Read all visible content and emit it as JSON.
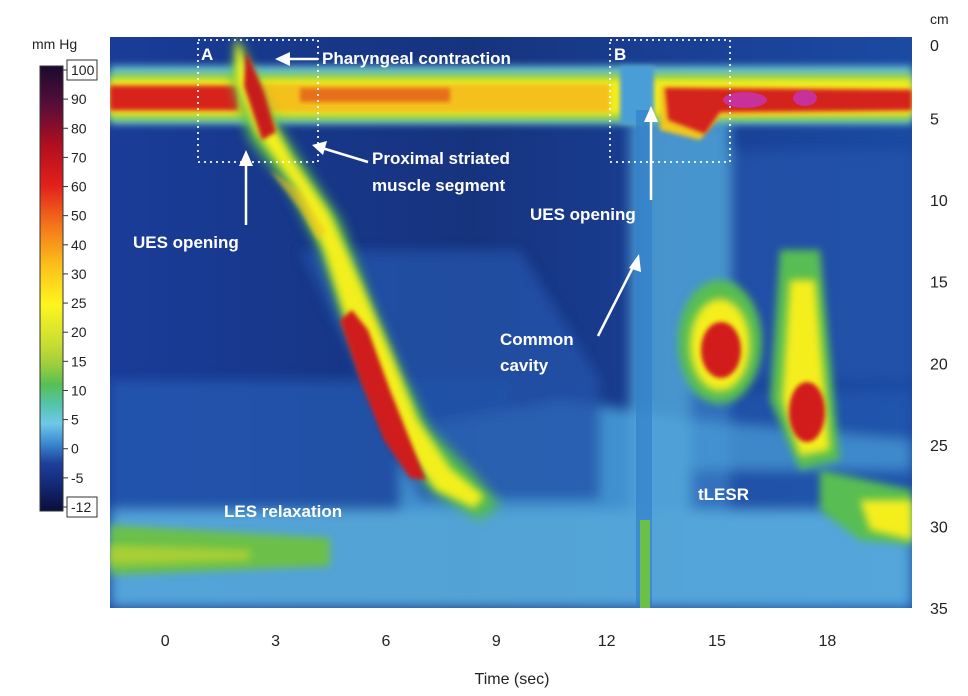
{
  "chart_data": {
    "type": "heatmap",
    "title": "",
    "xlabel": "Time (sec)",
    "ylabel": "",
    "y_unit_label": "cm",
    "x_ticks": [
      0,
      3,
      6,
      9,
      12,
      15,
      18
    ],
    "xlim": [
      -1.5,
      20.3
    ],
    "y_ticks": [
      0,
      5,
      10,
      15,
      20,
      25,
      30,
      35
    ],
    "ylim": [
      0,
      35
    ],
    "y_axis_inverted": true,
    "y_axis_side": "right",
    "grid": false,
    "colorbar": {
      "label": "mm Hg",
      "range": [
        -12,
        100
      ],
      "boxed_ticks": [
        "100",
        "-12"
      ],
      "ticks": [
        100,
        90,
        80,
        70,
        60,
        50,
        40,
        30,
        25,
        20,
        15,
        10,
        5,
        0,
        -5,
        -12
      ],
      "tick_labels": [
        "100",
        "90",
        "80",
        "70",
        "60",
        "50",
        "40",
        "30",
        "25",
        "20",
        "15",
        "10",
        "5",
        "0",
        "-5",
        "-12"
      ],
      "stops": [
        {
          "value": 100,
          "color": "#1a0a2e"
        },
        {
          "value": 90,
          "color": "#5a0d3a"
        },
        {
          "value": 80,
          "color": "#b10f1f"
        },
        {
          "value": 70,
          "color": "#e2201c"
        },
        {
          "value": 60,
          "color": "#f4741a"
        },
        {
          "value": 50,
          "color": "#fbbf1a"
        },
        {
          "value": 40,
          "color": "#fff51e"
        },
        {
          "value": 30,
          "color": "#c8dd32"
        },
        {
          "value": 25,
          "color": "#9fcf3c"
        },
        {
          "value": 20,
          "color": "#58bf52"
        },
        {
          "value": 15,
          "color": "#53c4a8"
        },
        {
          "value": 10,
          "color": "#6fc8e8"
        },
        {
          "value": 5,
          "color": "#3c88d0"
        },
        {
          "value": 0,
          "color": "#1e3f9a"
        },
        {
          "value": -5,
          "color": "#152a7a"
        },
        {
          "value": -12,
          "color": "#0a0f3a"
        }
      ]
    },
    "pressure_regions": [
      {
        "name": "UES high-pressure zone",
        "t_start": -1.5,
        "t_end": 20.3,
        "depth_top": 2.5,
        "depth_bottom": 5.0,
        "peak_mmHg": 80
      },
      {
        "name": "Pharyngeal contraction",
        "t_start": 0.9,
        "t_end": 1.4,
        "depth_top": 0,
        "depth_bottom": 4,
        "peak_mmHg": 95
      },
      {
        "name": "Peristaltic wave",
        "points": [
          {
            "t": 1.0,
            "depth": 3
          },
          {
            "t": 2.0,
            "depth": 7
          },
          {
            "t": 3.3,
            "depth": 12
          },
          {
            "t": 4.3,
            "depth": 18
          },
          {
            "t": 5.2,
            "depth": 24
          },
          {
            "t": 6.0,
            "depth": 28
          },
          {
            "t": 7.2,
            "depth": 30
          }
        ],
        "peak_mmHg": 80
      },
      {
        "name": "LES",
        "t_start": -1.5,
        "t_end": 4.0,
        "depth_top": 30,
        "depth_bottom": 32.5,
        "peak_mmHg": 25
      },
      {
        "name": "tLESR contraction 1",
        "t": 15.0,
        "depth": 19.5,
        "peak_mmHg": 75
      },
      {
        "name": "tLESR contraction 2",
        "t": 17.8,
        "depth": 23,
        "peak_mmHg": 75
      },
      {
        "name": "LES after tLESR",
        "t_start": 17.0,
        "t_end": 20.3,
        "depth_top": 28,
        "depth_bottom": 31.5,
        "peak_mmHg": 45
      }
    ],
    "annotations": [
      {
        "id": "A",
        "text": "A"
      },
      {
        "id": "B",
        "text": "B"
      },
      {
        "id": "pharyngeal",
        "text": "Pharyngeal contraction"
      },
      {
        "id": "proximal1",
        "text": "Proximal striated"
      },
      {
        "id": "proximal2",
        "text": "muscle segment"
      },
      {
        "id": "ues1",
        "text": "UES opening"
      },
      {
        "id": "ues2",
        "text": "UES opening"
      },
      {
        "id": "cavity1",
        "text": "Common"
      },
      {
        "id": "cavity2",
        "text": "cavity"
      },
      {
        "id": "les",
        "text": "LES relaxation"
      },
      {
        "id": "tlesr",
        "text": "tLESR"
      }
    ]
  }
}
